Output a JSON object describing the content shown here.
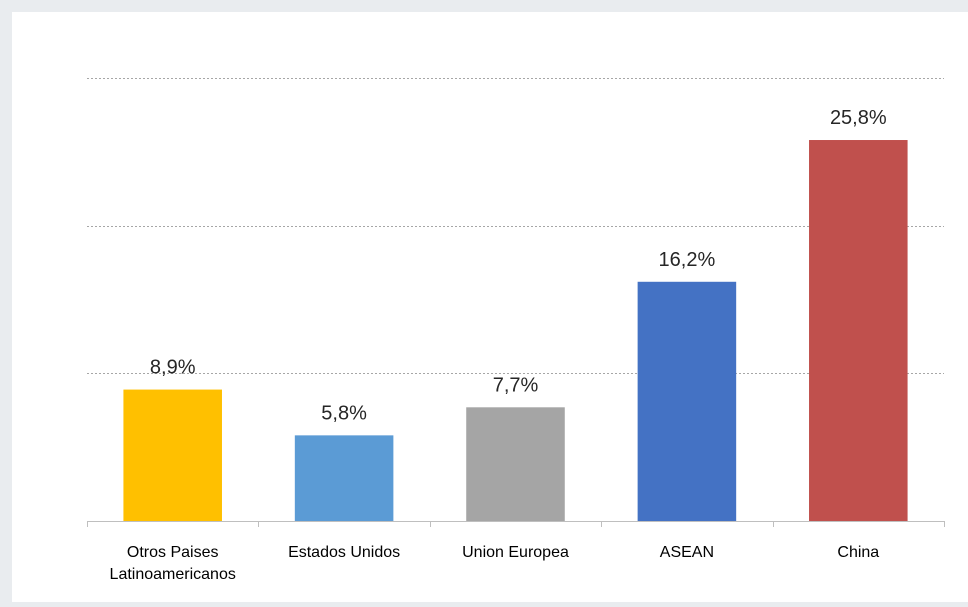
{
  "chart_data": {
    "type": "bar",
    "categories": [
      [
        "Otros Paises",
        "Latinoamericanos"
      ],
      [
        "Estados Unidos"
      ],
      [
        "Union Europea"
      ],
      [
        "ASEAN"
      ],
      [
        "China"
      ]
    ],
    "values": [
      8.9,
      5.8,
      7.7,
      16.2,
      25.8
    ],
    "value_labels": [
      "8,9%",
      "5,8%",
      "7,7%",
      "16,2%",
      "25,8%"
    ],
    "colors": [
      "#ffc000",
      "#5b9bd5",
      "#a5a5a5",
      "#4472c4",
      "#c0504d"
    ],
    "ylim": [
      0,
      30
    ],
    "gridlines": [
      10,
      20,
      30
    ],
    "grid": true,
    "legend": "none",
    "title": "",
    "xlabel": "",
    "ylabel": ""
  }
}
